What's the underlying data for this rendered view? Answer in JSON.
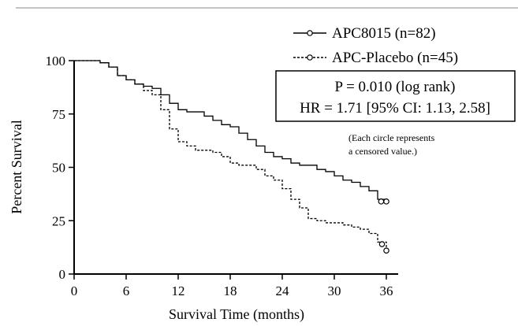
{
  "chart_data": {
    "type": "line",
    "xlabel": "Survival Time (months)",
    "ylabel": "Percent Survival",
    "xlim": [
      0,
      36
    ],
    "ylim": [
      0,
      100
    ],
    "x_ticks": [
      "0",
      "6",
      "12",
      "18",
      "24",
      "30",
      "36"
    ],
    "y_ticks": [
      "0",
      "25",
      "50",
      "75",
      "100"
    ],
    "grid": false,
    "legend_position": "top-right",
    "series": [
      {
        "name": "APC8015 (n=82)",
        "line_style": "solid",
        "color": "#000000",
        "points": [
          [
            0,
            100
          ],
          [
            2,
            100
          ],
          [
            3,
            99
          ],
          [
            4,
            97
          ],
          [
            5,
            93
          ],
          [
            6,
            91
          ],
          [
            7,
            89
          ],
          [
            8,
            88
          ],
          [
            9,
            87
          ],
          [
            10,
            84
          ],
          [
            11,
            80
          ],
          [
            12,
            77
          ],
          [
            13,
            76
          ],
          [
            14,
            76
          ],
          [
            15,
            74
          ],
          [
            16,
            72
          ],
          [
            17,
            70
          ],
          [
            18,
            69
          ],
          [
            19,
            66
          ],
          [
            20,
            63
          ],
          [
            21,
            60
          ],
          [
            22,
            57
          ],
          [
            23,
            55
          ],
          [
            24,
            54
          ],
          [
            25,
            52
          ],
          [
            26,
            51
          ],
          [
            27,
            51
          ],
          [
            28,
            49
          ],
          [
            29,
            48
          ],
          [
            30,
            46
          ],
          [
            31,
            44
          ],
          [
            32,
            43
          ],
          [
            33,
            41
          ],
          [
            34,
            39
          ],
          [
            35,
            35
          ],
          [
            36,
            35
          ]
        ],
        "censored": [
          [
            35.4,
            34
          ],
          [
            36,
            34
          ]
        ]
      },
      {
        "name": "APC-Placebo (n=45)",
        "line_style": "dashed",
        "color": "#000000",
        "points": [
          [
            0,
            100
          ],
          [
            2,
            100
          ],
          [
            3,
            99
          ],
          [
            4,
            97
          ],
          [
            5,
            93
          ],
          [
            6,
            91
          ],
          [
            7,
            89
          ],
          [
            8,
            86
          ],
          [
            9,
            84
          ],
          [
            10,
            77
          ],
          [
            11,
            68
          ],
          [
            12,
            62
          ],
          [
            13,
            60
          ],
          [
            14,
            58
          ],
          [
            15,
            58
          ],
          [
            16,
            57
          ],
          [
            17,
            55
          ],
          [
            18,
            52
          ],
          [
            19,
            51
          ],
          [
            20,
            51
          ],
          [
            21,
            49
          ],
          [
            22,
            46
          ],
          [
            23,
            44
          ],
          [
            24,
            40
          ],
          [
            25,
            35
          ],
          [
            26,
            31
          ],
          [
            27,
            26
          ],
          [
            28,
            25
          ],
          [
            29,
            24
          ],
          [
            30,
            24
          ],
          [
            31,
            23
          ],
          [
            32,
            22
          ],
          [
            33,
            21
          ],
          [
            34,
            19
          ],
          [
            35,
            15
          ],
          [
            36,
            11
          ]
        ],
        "censored": [
          [
            35.5,
            14
          ],
          [
            36,
            11
          ]
        ]
      }
    ],
    "annotations": {
      "p_value": "P = 0.010 (log rank)",
      "hr": "HR = 1.71 [95% CI: 1.13, 2.58]",
      "note_line1": "(Each circle represents",
      "note_line2": "a censored value.)"
    }
  }
}
